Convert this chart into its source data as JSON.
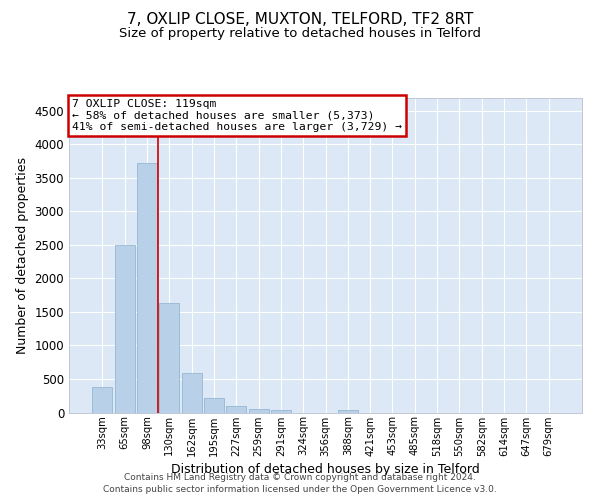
{
  "title": "7, OXLIP CLOSE, MUXTON, TELFORD, TF2 8RT",
  "subtitle": "Size of property relative to detached houses in Telford",
  "xlabel": "Distribution of detached houses by size in Telford",
  "ylabel": "Number of detached properties",
  "categories": [
    "33sqm",
    "65sqm",
    "98sqm",
    "130sqm",
    "162sqm",
    "195sqm",
    "227sqm",
    "259sqm",
    "291sqm",
    "324sqm",
    "356sqm",
    "388sqm",
    "421sqm",
    "453sqm",
    "485sqm",
    "518sqm",
    "550sqm",
    "582sqm",
    "614sqm",
    "647sqm",
    "679sqm"
  ],
  "values": [
    380,
    2500,
    3720,
    1640,
    590,
    220,
    100,
    55,
    40,
    0,
    0,
    40,
    0,
    0,
    0,
    0,
    0,
    0,
    0,
    0,
    0
  ],
  "bar_color": "#b8d0e8",
  "bar_edgecolor": "#8aafcc",
  "bar_linewidth": 0.5,
  "vline_x_index": 2.5,
  "vline_color": "#cc0000",
  "annotation_title": "7 OXLIP CLOSE: 119sqm",
  "annotation_line1": "← 58% of detached houses are smaller (5,373)",
  "annotation_line2": "41% of semi-detached houses are larger (3,729) →",
  "annotation_box_edgecolor": "#cc0000",
  "annotation_box_facecolor": "#ffffff",
  "ylim": [
    0,
    4700
  ],
  "yticks": [
    0,
    500,
    1000,
    1500,
    2000,
    2500,
    3000,
    3500,
    4000,
    4500
  ],
  "axes_background_color": "#dce8f5",
  "figure_background_color": "#ffffff",
  "grid_color": "#ffffff",
  "footer_line1": "Contains HM Land Registry data © Crown copyright and database right 2024.",
  "footer_line2": "Contains public sector information licensed under the Open Government Licence v3.0.",
  "title_fontsize": 11,
  "subtitle_fontsize": 9.5
}
